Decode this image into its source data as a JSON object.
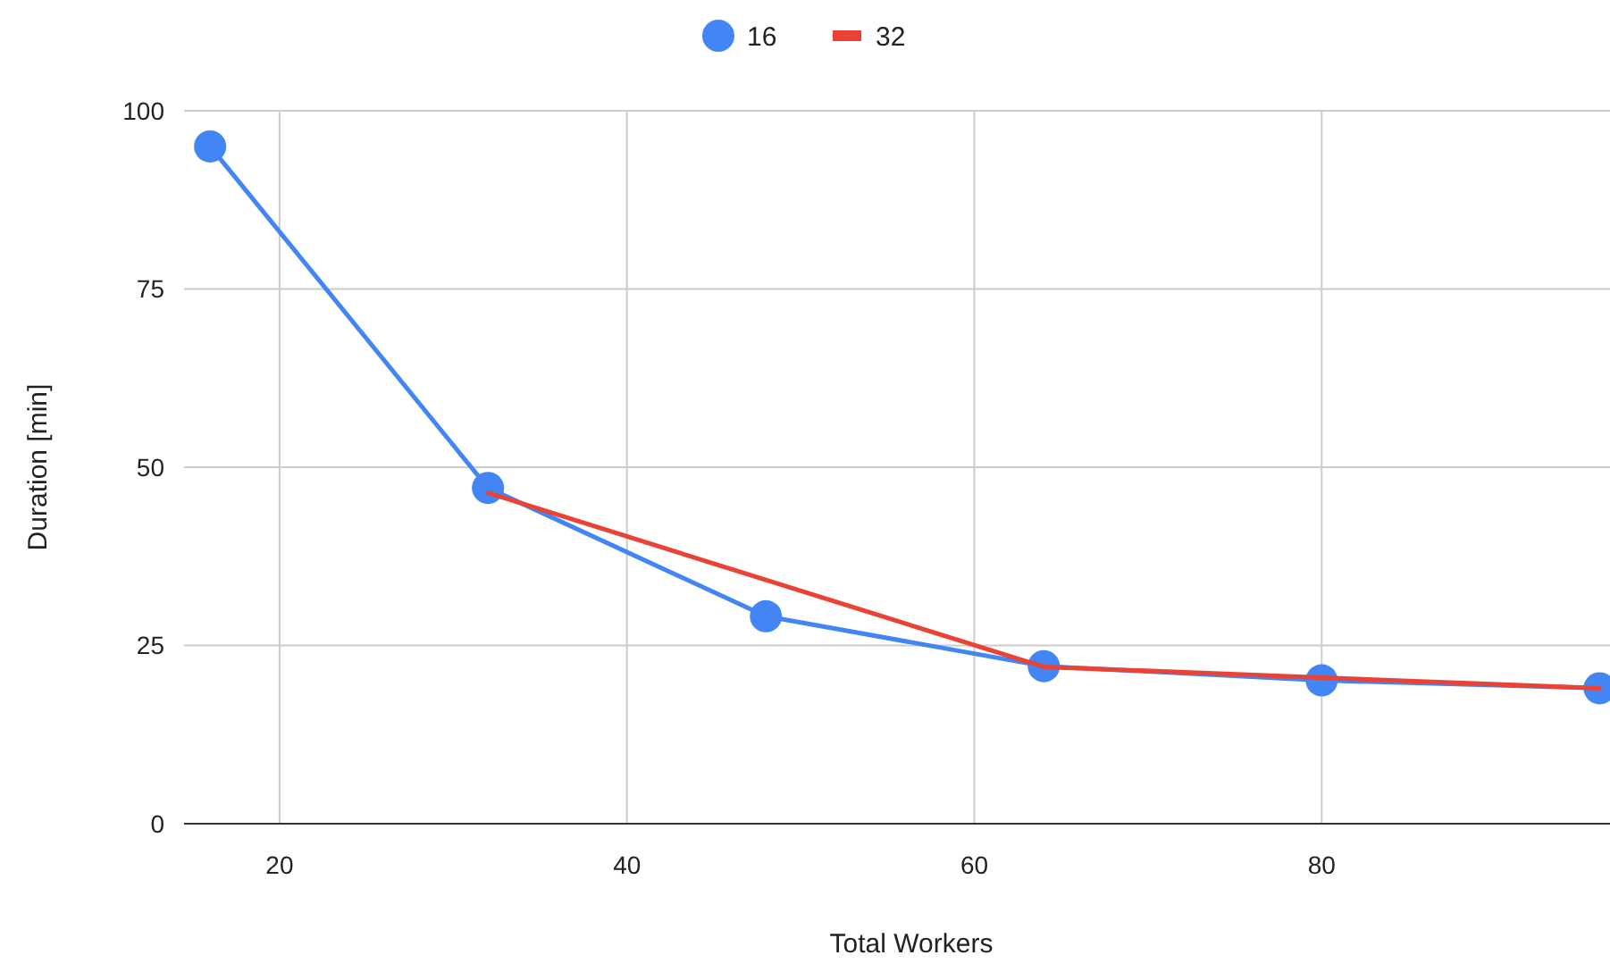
{
  "chart_data": {
    "type": "line",
    "xlabel": "Total Workers",
    "ylabel": "Duration [min]",
    "xlim": [
      14.5,
      96.6
    ],
    "xticks": [
      20,
      40,
      60,
      80
    ],
    "ylim": [
      0,
      100
    ],
    "yticks": [
      0,
      25,
      50,
      75,
      100
    ],
    "grid": true,
    "legend": "top",
    "series": [
      {
        "name": "16",
        "color": "#4285f4",
        "marker": "circle",
        "x": [
          16,
          32,
          48,
          64,
          80,
          96
        ],
        "values": [
          95,
          47.1,
          29.1,
          22.1,
          20.1,
          19
        ]
      },
      {
        "name": "32",
        "color": "#ea4335",
        "marker": "none",
        "x": [
          32,
          64,
          80,
          96
        ],
        "values": [
          46.4,
          22,
          20.5,
          19
        ]
      }
    ]
  }
}
